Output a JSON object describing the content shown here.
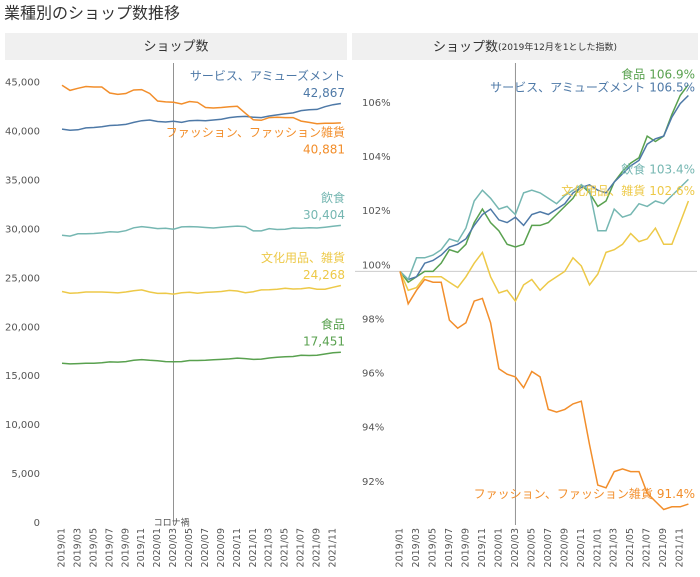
{
  "title": "業種別のショップ数推移",
  "chart_data": [
    {
      "type": "line",
      "title": "ショップ数",
      "categories": [
        "2019/01",
        null,
        "2019/03",
        null,
        "2019/05",
        null,
        "2019/07",
        null,
        "2019/09",
        null,
        "2019/11",
        null,
        "2020/01",
        null,
        "2020/03",
        null,
        "2020/05",
        null,
        "2020/07",
        null,
        "2020/09",
        null,
        "2020/11",
        null,
        "2021/01",
        null,
        "2021/03",
        null,
        "2021/05",
        null,
        "2021/07",
        null,
        "2021/09",
        null,
        "2021/11",
        null
      ],
      "ylim": [
        0,
        47000
      ],
      "yticks": [
        0,
        {
          "value": 5000,
          "label": "5,000"
        },
        {
          "value": 10000,
          "label": "10,000"
        },
        {
          "value": 15000,
          "label": "15,000"
        },
        {
          "value": 20000,
          "label": "20,000"
        },
        {
          "value": 25000,
          "label": "25,000"
        },
        {
          "value": 30000,
          "label": "30,000"
        },
        {
          "value": 35000,
          "label": "35,000"
        },
        {
          "value": 40000,
          "label": "40,000"
        },
        {
          "value": 45000,
          "label": "45,000"
        }
      ],
      "vline": "2020/03",
      "vline_label": "コロナ禍",
      "series": [
        {
          "name": "サービス、アミューズメント",
          "color": "#4e79a7",
          "values": [
            40250,
            40130,
            40170,
            40370,
            40410,
            40490,
            40610,
            40650,
            40730,
            40930,
            41100,
            41180,
            41020,
            40970,
            41050,
            40930,
            41100,
            41140,
            41100,
            41180,
            41260,
            41420,
            41500,
            41540,
            41460,
            41420,
            41580,
            41700,
            41820,
            41900,
            42140,
            42220,
            42260,
            42540,
            42740,
            42867
          ],
          "value_labels": [
            null,
            null,
            null,
            null,
            null,
            null,
            null,
            null,
            null,
            null,
            null,
            null,
            null,
            null,
            null,
            null,
            null,
            null,
            null,
            null,
            null,
            null,
            null,
            null,
            null,
            null,
            null,
            null,
            null,
            null,
            null,
            null,
            null,
            null,
            null,
            "42,867"
          ]
        },
        {
          "name": "ファッション、ファッション雑貨",
          "color": "#f28e2b",
          "values": [
            44730,
            44200,
            44420,
            44600,
            44550,
            44550,
            43930,
            43790,
            43880,
            44240,
            44280,
            43880,
            43120,
            43030,
            42980,
            42810,
            43070,
            42980,
            42450,
            42400,
            42450,
            42540,
            42580,
            41870,
            41200,
            41150,
            41420,
            41460,
            41420,
            41420,
            41060,
            40930,
            40790,
            40840,
            40840,
            40881
          ],
          "value_labels": [
            null,
            null,
            null,
            null,
            null,
            null,
            null,
            null,
            null,
            null,
            null,
            null,
            null,
            null,
            null,
            null,
            null,
            null,
            null,
            null,
            null,
            null,
            null,
            null,
            null,
            null,
            null,
            null,
            null,
            null,
            null,
            null,
            null,
            null,
            null,
            "40,881"
          ]
        },
        {
          "name": "飲食",
          "color": "#76b7b2",
          "values": [
            29400,
            29310,
            29550,
            29550,
            29580,
            29640,
            29750,
            29720,
            29870,
            30160,
            30280,
            30190,
            30080,
            30110,
            30020,
            30250,
            30280,
            30250,
            30190,
            30140,
            30220,
            30280,
            30340,
            30280,
            29840,
            29840,
            30080,
            29990,
            30020,
            30140,
            30110,
            30160,
            30140,
            30220,
            30310,
            30404
          ],
          "value_labels": [
            null,
            null,
            null,
            null,
            null,
            null,
            null,
            null,
            null,
            null,
            null,
            null,
            null,
            null,
            null,
            null,
            null,
            null,
            null,
            null,
            null,
            null,
            null,
            null,
            null,
            null,
            null,
            null,
            null,
            null,
            null,
            null,
            null,
            null,
            null,
            "30,404"
          ]
        },
        {
          "name": "文化用品、雑貨",
          "color": "#edc948",
          "values": [
            23650,
            23480,
            23510,
            23600,
            23600,
            23600,
            23560,
            23510,
            23600,
            23720,
            23820,
            23600,
            23460,
            23480,
            23390,
            23530,
            23580,
            23480,
            23560,
            23600,
            23650,
            23770,
            23700,
            23530,
            23630,
            23820,
            23840,
            23890,
            23980,
            23910,
            23930,
            24030,
            23890,
            23890,
            24080,
            24268
          ],
          "value_labels": [
            null,
            null,
            null,
            null,
            null,
            null,
            null,
            null,
            null,
            null,
            null,
            null,
            null,
            null,
            null,
            null,
            null,
            null,
            null,
            null,
            null,
            null,
            null,
            null,
            null,
            null,
            null,
            null,
            null,
            null,
            null,
            null,
            null,
            null,
            null,
            "24,268"
          ]
        },
        {
          "name": "食品",
          "color": "#59a14f",
          "values": [
            16325,
            16260,
            16290,
            16325,
            16325,
            16370,
            16460,
            16440,
            16490,
            16620,
            16700,
            16620,
            16570,
            16490,
            16470,
            16490,
            16600,
            16600,
            16620,
            16670,
            16720,
            16770,
            16850,
            16800,
            16720,
            16750,
            16860,
            16930,
            16980,
            17010,
            17140,
            17110,
            17140,
            17270,
            17390,
            17451
          ],
          "value_labels": [
            null,
            null,
            null,
            null,
            null,
            null,
            null,
            null,
            null,
            null,
            null,
            null,
            null,
            null,
            null,
            null,
            null,
            null,
            null,
            null,
            null,
            null,
            null,
            null,
            null,
            null,
            null,
            null,
            null,
            null,
            null,
            null,
            null,
            null,
            null,
            "17,451"
          ]
        }
      ]
    },
    {
      "type": "line",
      "title": "ショップ数",
      "subtitle": "(2019年12月を1とした指数)",
      "categories": [
        "2019/01",
        null,
        "2019/03",
        null,
        "2019/05",
        null,
        "2019/07",
        null,
        "2019/09",
        null,
        "2019/11",
        null,
        "2020/01",
        null,
        "2020/03",
        null,
        "2020/05",
        null,
        "2020/07",
        null,
        "2020/09",
        null,
        "2020/11",
        null,
        "2021/01",
        null,
        "2021/03",
        null,
        "2021/05",
        null,
        "2021/07",
        null,
        "2021/09",
        null,
        "2021/11",
        null
      ],
      "ylim": [
        90.7,
        107.7
      ],
      "yticks": [
        {
          "value": 92,
          "label": "92%"
        },
        {
          "value": 94,
          "label": "94%"
        },
        {
          "value": 96,
          "label": "96%"
        },
        {
          "value": 98,
          "label": "98%"
        },
        {
          "value": 100,
          "label": "100%"
        },
        {
          "value": 102,
          "label": "102%"
        },
        {
          "value": 104,
          "label": "104%"
        },
        {
          "value": 106,
          "label": "106%"
        }
      ],
      "hline": 100,
      "vline": "2020/03",
      "series": [
        {
          "name": "食品",
          "color": "#59a14f",
          "values": [
            100,
            99.6,
            99.8,
            100.0,
            100.0,
            100.3,
            100.8,
            100.7,
            101.0,
            101.8,
            102.3,
            101.8,
            101.5,
            101.0,
            100.9,
            101.0,
            101.7,
            101.7,
            101.8,
            102.1,
            102.4,
            102.7,
            103.2,
            102.9,
            102.4,
            102.6,
            103.3,
            103.7,
            104.0,
            104.2,
            105.0,
            104.8,
            105.0,
            105.8,
            106.5,
            106.9
          ],
          "value_labels": [
            null,
            null,
            null,
            null,
            null,
            null,
            null,
            null,
            null,
            null,
            null,
            null,
            null,
            null,
            null,
            null,
            null,
            null,
            null,
            null,
            null,
            null,
            null,
            null,
            null,
            null,
            null,
            null,
            null,
            null,
            null,
            null,
            null,
            null,
            null,
            "106.9%"
          ]
        },
        {
          "name": "サービス、アミューズメント",
          "color": "#4e79a7",
          "values": [
            100,
            99.7,
            99.8,
            100.3,
            100.4,
            100.6,
            100.9,
            101.0,
            101.2,
            101.7,
            102.1,
            102.3,
            101.9,
            101.8,
            102.0,
            101.7,
            102.1,
            102.2,
            102.1,
            102.3,
            102.5,
            102.9,
            103.1,
            103.2,
            103.0,
            102.9,
            103.3,
            103.6,
            103.9,
            104.1,
            104.7,
            104.9,
            105.0,
            105.7,
            106.2,
            106.5
          ],
          "value_labels": [
            null,
            null,
            null,
            null,
            null,
            null,
            null,
            null,
            null,
            null,
            null,
            null,
            null,
            null,
            null,
            null,
            null,
            null,
            null,
            null,
            null,
            null,
            null,
            null,
            null,
            null,
            null,
            null,
            null,
            null,
            null,
            null,
            null,
            null,
            null,
            "106.5%"
          ]
        },
        {
          "name": "飲食",
          "color": "#76b7b2",
          "values": [
            100,
            99.7,
            100.5,
            100.5,
            100.6,
            100.8,
            101.2,
            101.1,
            101.6,
            102.6,
            103.0,
            102.7,
            102.3,
            102.4,
            102.1,
            102.9,
            103.0,
            102.9,
            102.7,
            102.5,
            102.8,
            103.0,
            103.2,
            103.0,
            101.5,
            101.5,
            102.3,
            102.0,
            102.1,
            102.5,
            102.4,
            102.6,
            102.5,
            102.8,
            103.1,
            103.4
          ],
          "value_labels": [
            null,
            null,
            null,
            null,
            null,
            null,
            null,
            null,
            null,
            null,
            null,
            null,
            null,
            null,
            null,
            null,
            null,
            null,
            null,
            null,
            null,
            null,
            null,
            null,
            null,
            null,
            null,
            null,
            null,
            null,
            null,
            null,
            null,
            null,
            null,
            "103.4%"
          ]
        },
        {
          "name": "文化用品、雑貨",
          "color": "#edc948",
          "values": [
            100,
            99.3,
            99.4,
            99.8,
            99.8,
            99.8,
            99.6,
            99.4,
            99.8,
            100.3,
            100.7,
            99.8,
            99.2,
            99.3,
            98.9,
            99.5,
            99.7,
            99.3,
            99.6,
            99.8,
            100.0,
            100.5,
            100.2,
            99.5,
            99.9,
            100.7,
            100.8,
            101.0,
            101.4,
            101.1,
            101.2,
            101.6,
            101.0,
            101.0,
            101.8,
            102.6
          ],
          "value_labels": [
            null,
            null,
            null,
            null,
            null,
            null,
            null,
            null,
            null,
            null,
            null,
            null,
            null,
            null,
            null,
            null,
            null,
            null,
            null,
            null,
            null,
            null,
            null,
            null,
            null,
            null,
            null,
            null,
            null,
            null,
            null,
            null,
            null,
            null,
            null,
            "102.6%"
          ]
        },
        {
          "name": "ファッション、ファッション雑貨",
          "color": "#f28e2b",
          "values": [
            100,
            98.8,
            99.3,
            99.7,
            99.6,
            99.6,
            98.2,
            97.9,
            98.1,
            98.9,
            99.0,
            98.1,
            96.4,
            96.2,
            96.1,
            95.7,
            96.3,
            96.1,
            94.9,
            94.8,
            94.9,
            95.1,
            95.2,
            93.6,
            92.1,
            92.0,
            92.6,
            92.7,
            92.6,
            92.6,
            91.8,
            91.5,
            91.2,
            91.3,
            91.3,
            91.4
          ],
          "value_labels": [
            null,
            null,
            null,
            null,
            null,
            null,
            null,
            null,
            null,
            null,
            null,
            null,
            null,
            null,
            null,
            null,
            null,
            null,
            null,
            null,
            null,
            null,
            null,
            null,
            null,
            null,
            null,
            null,
            null,
            null,
            null,
            null,
            null,
            null,
            null,
            "91.4%"
          ]
        }
      ]
    }
  ]
}
